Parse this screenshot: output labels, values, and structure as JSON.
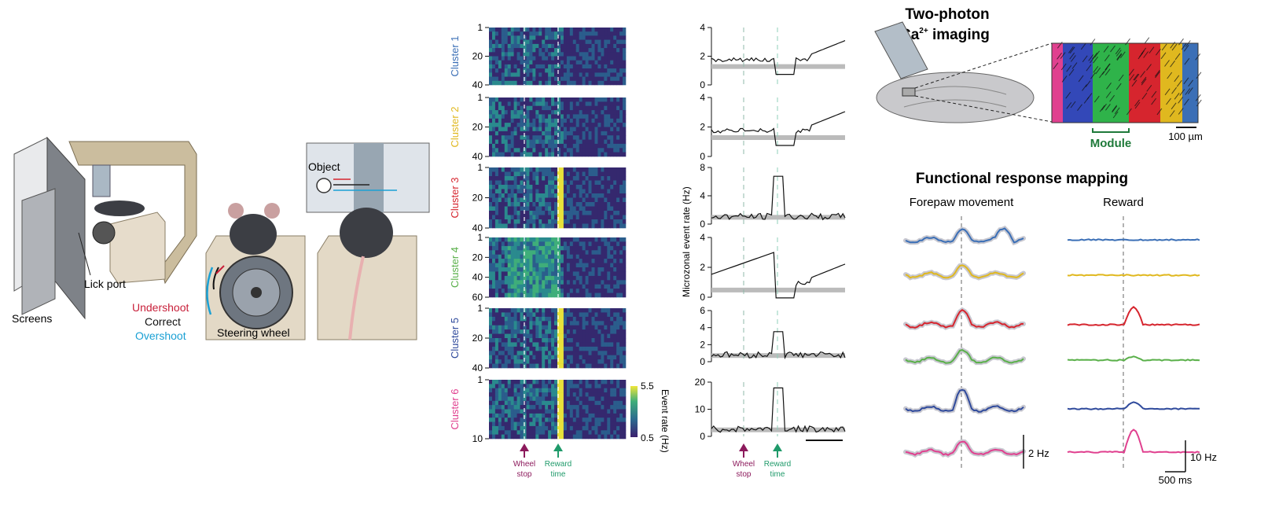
{
  "setup": {
    "screens_label": "Screens",
    "lick_port_label": "Lick port",
    "steering_wheel_label": "Steering wheel",
    "object_label": "Object",
    "outcomes": [
      {
        "label": "Undershoot",
        "color": "#c8203a"
      },
      {
        "label": "Correct",
        "color": "#111111"
      },
      {
        "label": "Overshoot",
        "color": "#1aa0d4"
      }
    ]
  },
  "heatmaps": {
    "clusters": [
      {
        "label": "Cluster 1",
        "color": "#3b6fb6",
        "ticks": [
          "1",
          "20",
          "40"
        ]
      },
      {
        "label": "Cluster 2",
        "color": "#e0b81f",
        "ticks": [
          "1",
          "20",
          "40"
        ]
      },
      {
        "label": "Cluster 3",
        "color": "#d6252e",
        "ticks": [
          "1",
          "20",
          "40"
        ]
      },
      {
        "label": "Cluster 4",
        "color": "#5ab04a",
        "ticks": [
          "1",
          "20",
          "40",
          "60"
        ]
      },
      {
        "label": "Cluster 5",
        "color": "#2f4a9c",
        "ticks": [
          "1",
          "20",
          "40"
        ]
      },
      {
        "label": "Cluster 6",
        "color": "#e0408f",
        "ticks": [
          "1",
          "10"
        ]
      }
    ],
    "colorbar": {
      "label": "Event rate (Hz)",
      "max": "5.5",
      "min": "0.5"
    },
    "markers": [
      {
        "label_line1": "Wheel",
        "label_line2": "stop",
        "color": "#8c1a5c"
      },
      {
        "label_line1": "Reward",
        "label_line2": "time",
        "color": "#1f9a6a"
      }
    ]
  },
  "traces": {
    "ylabel": "Microzonal event rate (Hz)",
    "panels": [
      {
        "ticks": [
          "4",
          "2",
          "0"
        ]
      },
      {
        "ticks": [
          "4",
          "2",
          "0"
        ]
      },
      {
        "ticks": [
          "8",
          "4",
          "0"
        ]
      },
      {
        "ticks": [
          "4",
          "2",
          "0"
        ]
      },
      {
        "ticks": [
          "6",
          "4",
          "2",
          "0"
        ]
      },
      {
        "ticks": [
          "20",
          "10",
          "0"
        ]
      }
    ]
  },
  "imaging": {
    "title_line1": "Two-photon",
    "title_line2": "Ca",
    "title_sup": "2+",
    "title_line2_end": " imaging",
    "module_label": "Module",
    "scalebar_label": "100 µm"
  },
  "mapping": {
    "title": "Functional response mapping",
    "col1": "Forepaw movement",
    "col2": "Reward",
    "scale_left": "2 Hz",
    "scale_right": "10 Hz",
    "scale_time": "500 ms",
    "colors": [
      "#3b6fb6",
      "#e0b81f",
      "#d6252e",
      "#5ab04a",
      "#2f4a9c",
      "#e0408f"
    ]
  }
}
